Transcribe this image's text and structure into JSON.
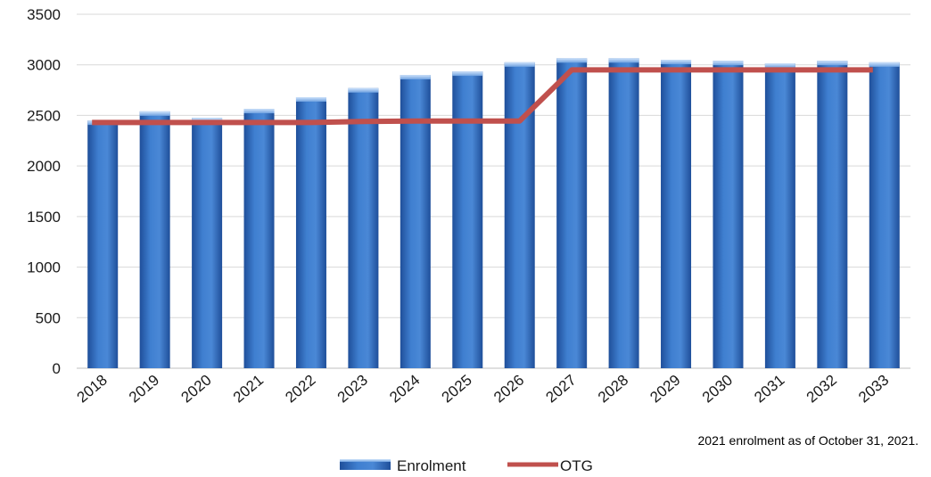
{
  "chart_data": {
    "type": "bar",
    "categories": [
      "2018",
      "2019",
      "2020",
      "2021",
      "2022",
      "2023",
      "2024",
      "2025",
      "2026",
      "2027",
      "2028",
      "2029",
      "2030",
      "2031",
      "2032",
      "2033"
    ],
    "series": [
      {
        "name": "Enrolment",
        "type": "bar",
        "color": "#3a74c3",
        "values": [
          2450,
          2540,
          2475,
          2565,
          2680,
          2770,
          2900,
          2935,
          3025,
          3065,
          3065,
          3050,
          3040,
          3015,
          3040,
          3025
        ]
      },
      {
        "name": "OTG",
        "type": "line",
        "color": "#c0504d",
        "values": [
          2430,
          2430,
          2430,
          2430,
          2430,
          2440,
          2445,
          2445,
          2445,
          2950,
          2950,
          2950,
          2950,
          2950,
          2950,
          2950
        ]
      }
    ],
    "y_ticks": [
      "0",
      "500",
      "1000",
      "1500",
      "2000",
      "2500",
      "3000",
      "3500"
    ],
    "ylim": [
      0,
      3500
    ],
    "grid": true,
    "legend_position": "bottom",
    "note": "2021 enrolment as of October 31, 2021."
  }
}
